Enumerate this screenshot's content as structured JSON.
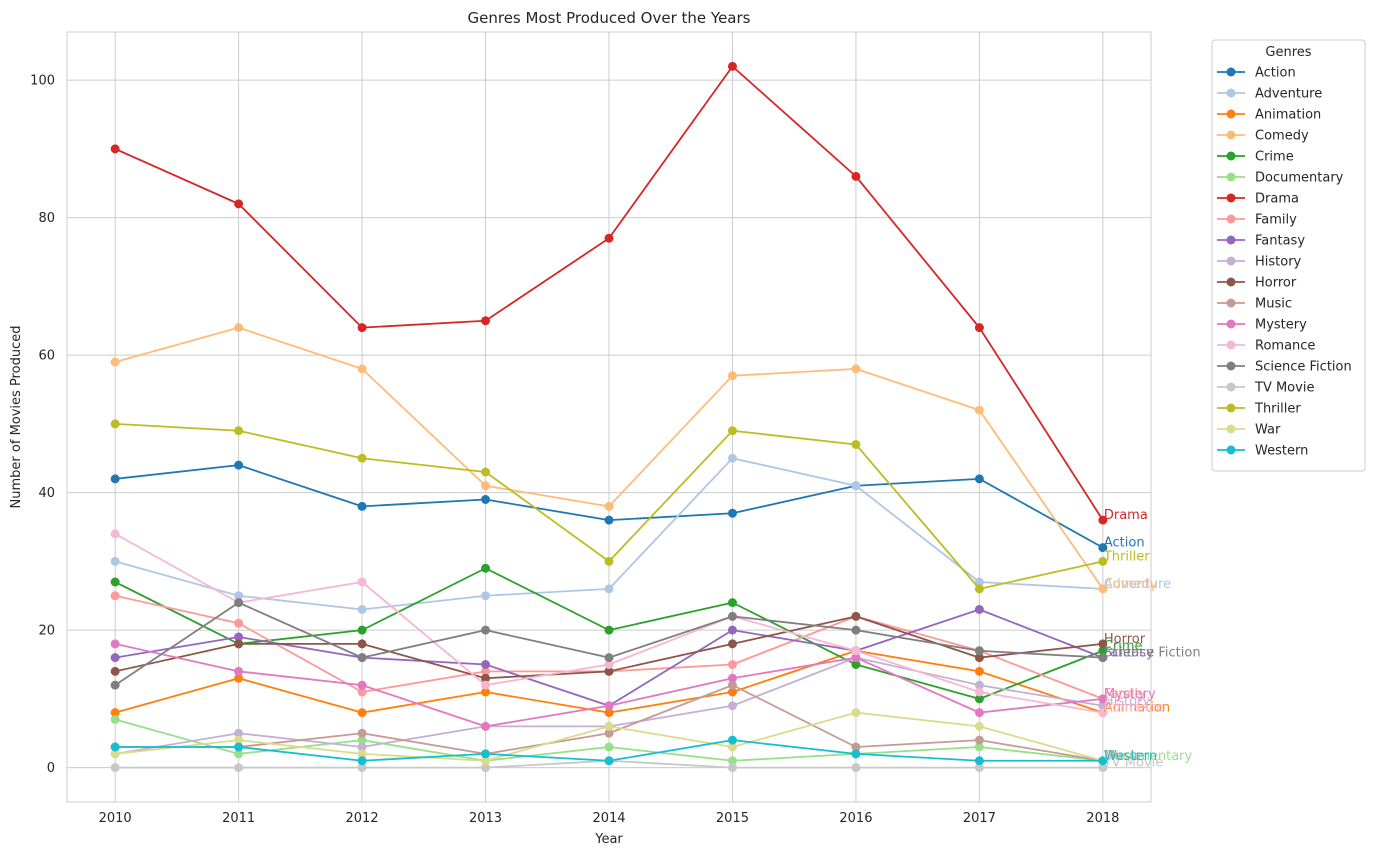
{
  "chart_data": {
    "type": "line",
    "title": "Genres Most Produced Over the Years",
    "xlabel": "Year",
    "ylabel": "Number of Movies Produced",
    "x": [
      2010,
      2011,
      2012,
      2013,
      2014,
      2015,
      2016,
      2017,
      2018
    ],
    "ylim": [
      -5,
      107
    ],
    "yticks": [
      0,
      20,
      40,
      60,
      80,
      100
    ],
    "grid": true,
    "legend_title": "Genres",
    "legend_position": "outside-right",
    "series": [
      {
        "name": "Action",
        "color": "#1f77b4",
        "values": [
          42,
          44,
          38,
          39,
          36,
          37,
          41,
          42,
          32
        ]
      },
      {
        "name": "Adventure",
        "color": "#aec7e8",
        "values": [
          30,
          25,
          23,
          25,
          26,
          45,
          41,
          27,
          26
        ]
      },
      {
        "name": "Animation",
        "color": "#ff7f0e",
        "values": [
          8,
          13,
          8,
          11,
          8,
          11,
          17,
          14,
          8
        ]
      },
      {
        "name": "Comedy",
        "color": "#ffbb78",
        "values": [
          59,
          64,
          58,
          41,
          38,
          57,
          58,
          52,
          26
        ]
      },
      {
        "name": "Crime",
        "color": "#2ca02c",
        "values": [
          27,
          18,
          20,
          29,
          20,
          24,
          15,
          10,
          17
        ]
      },
      {
        "name": "Documentary",
        "color": "#98df8a",
        "values": [
          7,
          2,
          4,
          1,
          3,
          1,
          2,
          3,
          1
        ]
      },
      {
        "name": "Drama",
        "color": "#d62728",
        "values": [
          90,
          82,
          64,
          65,
          77,
          102,
          86,
          64,
          36
        ]
      },
      {
        "name": "Family",
        "color": "#ff9896",
        "values": [
          25,
          21,
          11,
          14,
          14,
          15,
          22,
          17,
          10
        ]
      },
      {
        "name": "Fantasy",
        "color": "#9467bd",
        "values": [
          16,
          19,
          16,
          15,
          9,
          20,
          17,
          23,
          16
        ]
      },
      {
        "name": "History",
        "color": "#c5b0d5",
        "values": [
          2,
          5,
          3,
          6,
          6,
          9,
          16,
          12,
          9
        ]
      },
      {
        "name": "Horror",
        "color": "#8c564b",
        "values": [
          14,
          18,
          18,
          13,
          14,
          18,
          22,
          16,
          18
        ]
      },
      {
        "name": "Music",
        "color": "#c49c94",
        "values": [
          3,
          3,
          5,
          2,
          5,
          12,
          3,
          4,
          1
        ]
      },
      {
        "name": "Mystery",
        "color": "#e377c2",
        "values": [
          18,
          14,
          12,
          6,
          9,
          13,
          16,
          8,
          10
        ]
      },
      {
        "name": "Romance",
        "color": "#f7b6d2",
        "values": [
          34,
          24,
          27,
          12,
          15,
          22,
          17,
          11,
          8
        ]
      },
      {
        "name": "Science Fiction",
        "color": "#7f7f7f",
        "values": [
          12,
          24,
          16,
          20,
          16,
          22,
          20,
          17,
          16
        ]
      },
      {
        "name": "TV Movie",
        "color": "#c7c7c7",
        "values": [
          0,
          0,
          0,
          0,
          1,
          0,
          0,
          0,
          0
        ]
      },
      {
        "name": "Thriller",
        "color": "#bcbd22",
        "values": [
          50,
          49,
          45,
          43,
          30,
          49,
          47,
          26,
          30
        ]
      },
      {
        "name": "War",
        "color": "#dbdb8d",
        "values": [
          2,
          4,
          2,
          1,
          6,
          3,
          8,
          6,
          1
        ]
      },
      {
        "name": "Western",
        "color": "#17becf",
        "values": [
          3,
          3,
          1,
          2,
          1,
          4,
          2,
          1,
          1
        ]
      }
    ]
  }
}
